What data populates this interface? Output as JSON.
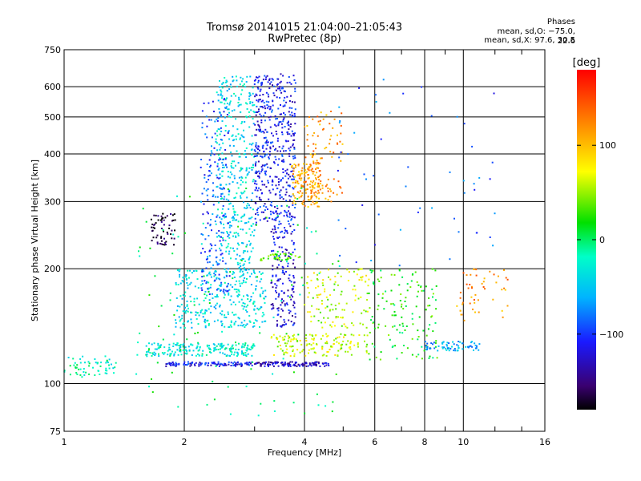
{
  "chart_data": {
    "type": "scatter",
    "title": "Tromsø 20141015 21:04:00–21:05:43",
    "subtitle": "RwPretec (8p)",
    "xlabel": "Frequency [MHz]",
    "ylabel": "Stationary phase Virtual Height [km]",
    "x_scale": "log",
    "y_scale": "log",
    "xlim": [
      1,
      16
    ],
    "ylim": [
      75,
      750
    ],
    "x_ticks": [
      1,
      2,
      4,
      6,
      8,
      10,
      16
    ],
    "x_tick_labels": [
      "1",
      "2",
      "4",
      "6",
      "8",
      "10",
      "16"
    ],
    "x_minor_ticks": [
      3,
      5,
      7,
      9,
      12,
      14
    ],
    "y_ticks": [
      75,
      100,
      200,
      300,
      400,
      500,
      600,
      750
    ],
    "y_tick_labels": [
      "75",
      "100",
      "200",
      "300",
      "400",
      "500",
      "600",
      "750"
    ],
    "grid": true,
    "colorbar": {
      "label": "[deg]",
      "min": -180,
      "max": 180,
      "ticks": [
        100,
        0,
        -100
      ],
      "tick_labels": [
        "100",
        "0",
        "−100"
      ],
      "colormap": "rainbow"
    },
    "stats": {
      "heading": "Phases",
      "o_mode": "mean, sd,O: −75.0, 22.6",
      "x_mode": "mean, sd,X:  97.6, 30.5"
    },
    "clusters": [
      {
        "x": [
          1.0,
          1.35
        ],
        "y": [
          104,
          118
        ],
        "phase": -20,
        "n": 60
      },
      {
        "x": [
          1.6,
          3.0
        ],
        "y": [
          118,
          128
        ],
        "phase": -30,
        "n": 200
      },
      {
        "x": [
          1.8,
          3.0
        ],
        "y": [
          111,
          114
        ],
        "phase": -110,
        "n": 110
      },
      {
        "x": [
          3.0,
          4.6
        ],
        "y": [
          111,
          114
        ],
        "phase": -130,
        "n": 120
      },
      {
        "x": [
          1.9,
          3.2
        ],
        "y": [
          140,
          200
        ],
        "phase": -40,
        "n": 320
      },
      {
        "x": [
          2.4,
          3.0
        ],
        "y": [
          200,
          640
        ],
        "phase": -40,
        "n": 380
      },
      {
        "x": [
          2.2,
          2.6
        ],
        "y": [
          170,
          560
        ],
        "phase": -90,
        "n": 200
      },
      {
        "x": [
          3.0,
          3.8
        ],
        "y": [
          260,
          650
        ],
        "phase": -110,
        "n": 480
      },
      {
        "x": [
          3.3,
          3.8
        ],
        "y": [
          140,
          260
        ],
        "phase": -120,
        "n": 160
      },
      {
        "x": [
          3.7,
          4.4
        ],
        "y": [
          290,
          380
        ],
        "phase": 110,
        "n": 130
      },
      {
        "x": [
          4.0,
          5.0
        ],
        "y": [
          300,
          520
        ],
        "phase": 120,
        "n": 110
      },
      {
        "x": [
          3.1,
          3.9
        ],
        "y": [
          210,
          220
        ],
        "phase": 40,
        "n": 40
      },
      {
        "x": [
          1.65,
          1.9
        ],
        "y": [
          230,
          280
        ],
        "phase": -170,
        "n": 60
      },
      {
        "x": [
          3.3,
          5.8
        ],
        "y": [
          118,
          135
        ],
        "phase": 60,
        "n": 150
      },
      {
        "x": [
          4.0,
          5.8
        ],
        "y": [
          140,
          200
        ],
        "phase": 60,
        "n": 120
      },
      {
        "x": [
          5.8,
          8.6
        ],
        "y": [
          115,
          200
        ],
        "phase": 20,
        "n": 140
      },
      {
        "x": [
          8.0,
          11.0
        ],
        "y": [
          122,
          129
        ],
        "phase": -60,
        "n": 70
      },
      {
        "x": [
          9.5,
          13.0
        ],
        "y": [
          145,
          200
        ],
        "phase": 120,
        "n": 50
      },
      {
        "x": [
          4.8,
          12.0
        ],
        "y": [
          200,
          650
        ],
        "phase": -90,
        "n": 55
      },
      {
        "x": [
          1.5,
          5.0
        ],
        "y": [
          82,
          330
        ],
        "phase": 0,
        "n": 120
      }
    ]
  }
}
